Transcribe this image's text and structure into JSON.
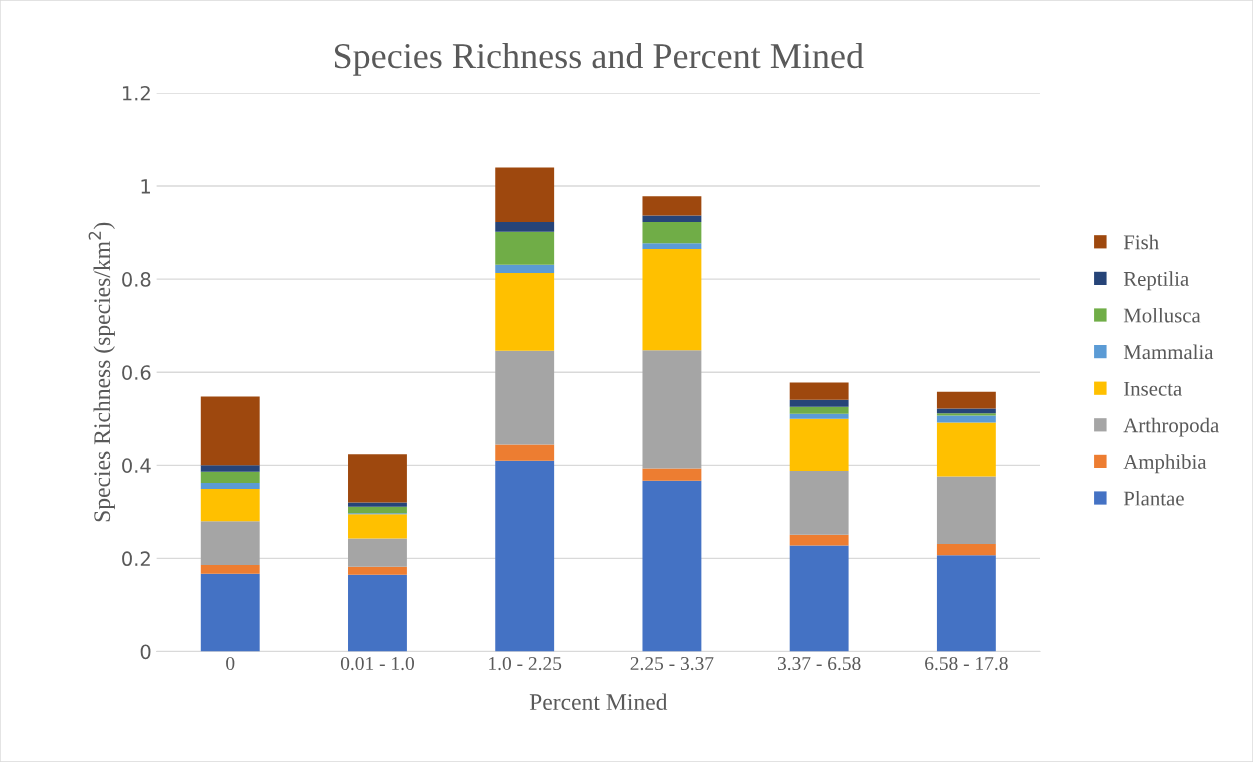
{
  "chart_data": {
    "type": "bar",
    "stacked": true,
    "title": "Species Richness and Percent Mined",
    "xlabel": "Percent Mined",
    "ylabel": "Species Richness (species/km$^{2}$)",
    "categories": [
      "0",
      "0.01 - 1.0",
      "1.0 - 2.25",
      "2.25 - 3.37",
      "3.37 - 6.58",
      "6.58 - 17.8"
    ],
    "series": [
      {
        "name": "Plantae",
        "color": "#4472c4",
        "values": [
          0.167,
          0.165,
          0.41,
          0.367,
          0.228,
          0.207
        ]
      },
      {
        "name": "Amphibia",
        "color": "#ed7d31",
        "values": [
          0.019,
          0.017,
          0.035,
          0.026,
          0.023,
          0.024
        ]
      },
      {
        "name": "Arthropoda",
        "color": "#a5a5a5",
        "values": [
          0.094,
          0.061,
          0.201,
          0.254,
          0.137,
          0.145
        ]
      },
      {
        "name": "Insecta",
        "color": "#ffc000",
        "values": [
          0.069,
          0.052,
          0.167,
          0.218,
          0.112,
          0.116
        ]
      },
      {
        "name": "Mammalia",
        "color": "#5b9bd5",
        "values": [
          0.013,
          0.002,
          0.018,
          0.012,
          0.011,
          0.015
        ]
      },
      {
        "name": "Mollusca",
        "color": "#70ad47",
        "values": [
          0.024,
          0.014,
          0.071,
          0.046,
          0.015,
          0.005
        ]
      },
      {
        "name": "Reptilia",
        "color": "#264478",
        "values": [
          0.014,
          0.009,
          0.021,
          0.014,
          0.015,
          0.01
        ]
      },
      {
        "name": "Fish",
        "color": "#9e480e",
        "values": [
          0.148,
          0.104,
          0.117,
          0.041,
          0.037,
          0.036
        ]
      }
    ],
    "ylim": [
      0,
      1.2
    ],
    "yticks": [
      0,
      {
        "value": 0.2,
        "label": "0.2"
      },
      {
        "value": 0.4,
        "label": "0.4"
      },
      {
        "value": 0.6,
        "label": "0.6"
      },
      {
        "value": 0.8,
        "label": "0.8"
      },
      1,
      {
        "value": 1.2,
        "label": "1.2"
      }
    ],
    "grid": "y",
    "legend": "right"
  }
}
